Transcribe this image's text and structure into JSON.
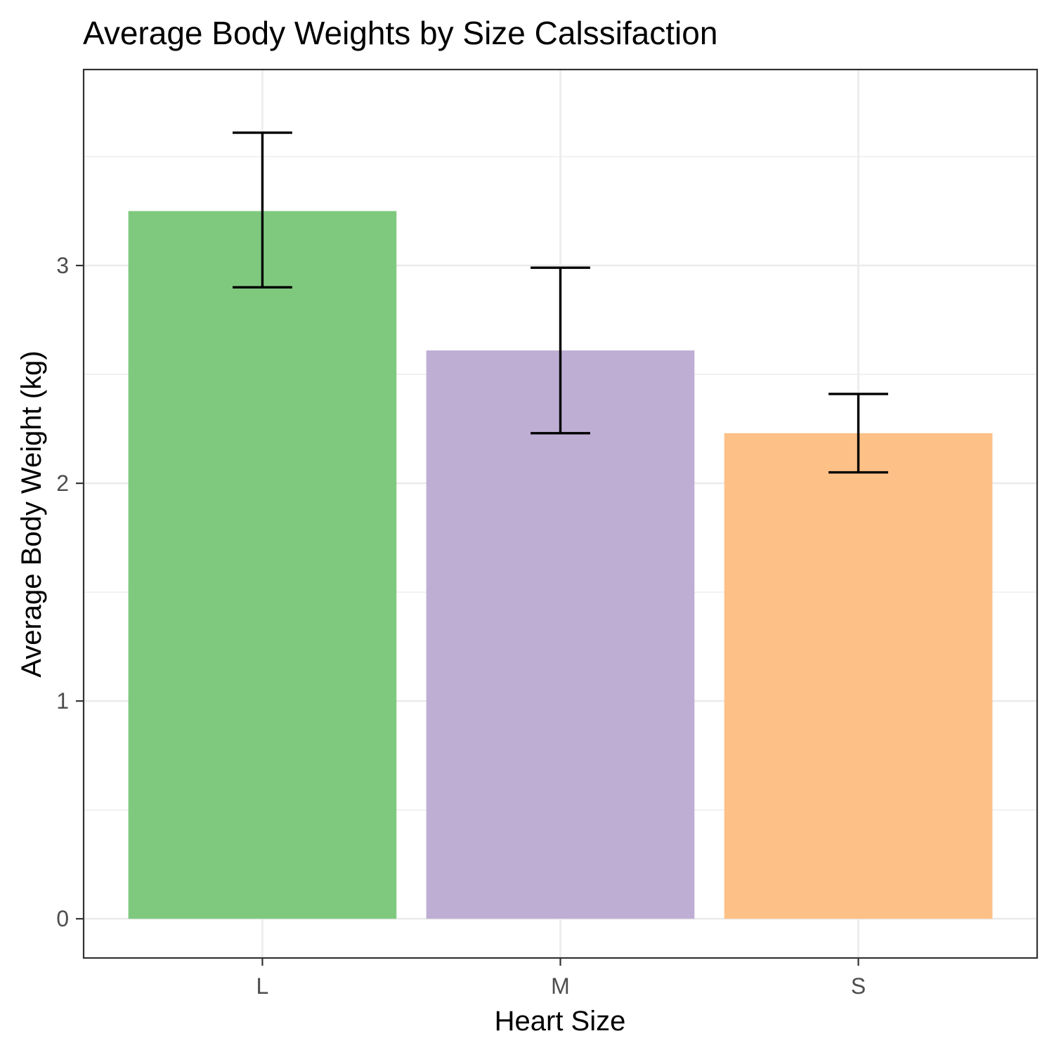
{
  "chart_data": {
    "type": "bar",
    "title": "Average Body Weights by Size Calssifaction",
    "xlabel": "Heart Size",
    "ylabel": "Average Body Weight (kg)",
    "categories": [
      "L",
      "M",
      "S"
    ],
    "values": [
      3.25,
      2.61,
      2.23
    ],
    "error_low": [
      2.9,
      2.23,
      2.05
    ],
    "error_high": [
      3.61,
      2.99,
      2.41
    ],
    "bar_colors": [
      "#7fc97f",
      "#beaed4",
      "#fdc086"
    ],
    "ylim": [
      -0.18,
      3.9
    ],
    "yticks": [
      0,
      1,
      2,
      3
    ],
    "ytick_labels": [
      "0",
      "1",
      "2",
      "3"
    ],
    "grid": true,
    "legend": "none"
  }
}
